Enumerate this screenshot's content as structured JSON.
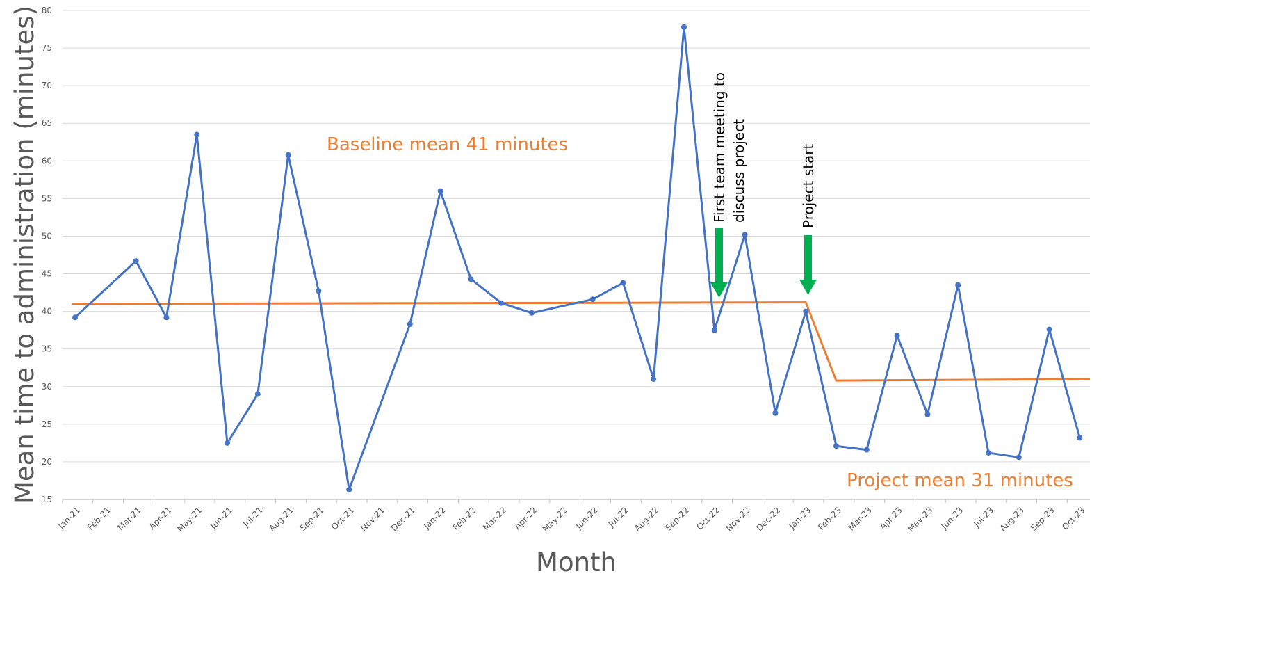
{
  "chart_data": {
    "type": "line",
    "title": "",
    "xlabel": "Month",
    "ylabel": "Mean time to administration (minutes)",
    "ylim": [
      15,
      80
    ],
    "y_ticks": [
      15,
      20,
      25,
      30,
      35,
      40,
      45,
      50,
      55,
      60,
      65,
      70,
      75,
      80
    ],
    "grid": true,
    "legend": "none",
    "categories": [
      "Jan-21",
      "Feb-21",
      "Mar-21",
      "Apr-21",
      "May-21",
      "Jun-21",
      "Jul-21",
      "Aug-21",
      "Sep-21",
      "Oct-21",
      "Nov-21",
      "Dec-21",
      "Jan-22",
      "Feb-22",
      "Mar-22",
      "Apr-22",
      "May-22",
      "Jun-22",
      "Jul-22",
      "Aug-22",
      "Sep-22",
      "Oct-22",
      "Nov-22",
      "Dec-22",
      "Jan-23",
      "Feb-23",
      "Mar-23",
      "Apr-23",
      "May-23",
      "Jun-23",
      "Jul-23",
      "Aug-23",
      "Sep-23",
      "Oct-23"
    ],
    "series": [
      {
        "color": "#4472C4",
        "points": [
          [
            "Jan-21",
            39.2
          ],
          [
            "Mar-21",
            46.7
          ],
          [
            "Apr-21",
            39.2
          ],
          [
            "May-21",
            63.5
          ],
          [
            "Jun-21",
            22.5
          ],
          [
            "Jul-21",
            29.0
          ],
          [
            "Aug-21",
            60.8
          ],
          [
            "Sep-21",
            42.7
          ],
          [
            "Oct-21",
            16.3
          ],
          [
            "Dec-21",
            38.3
          ],
          [
            "Jan-22",
            56.0
          ],
          [
            "Feb-22",
            44.3
          ],
          [
            "Mar-22",
            41.1
          ],
          [
            "Apr-22",
            39.8
          ],
          [
            "Jun-22",
            41.6
          ],
          [
            "Jul-22",
            43.8
          ],
          [
            "Aug-22",
            31.0
          ],
          [
            "Sep-22",
            77.8
          ],
          [
            "Oct-22",
            37.5
          ],
          [
            "Nov-22",
            50.2
          ],
          [
            "Dec-22",
            26.5
          ],
          [
            "Jan-23",
            40.0
          ],
          [
            "Feb-23",
            22.1
          ],
          [
            "Mar-23",
            21.6
          ],
          [
            "Apr-23",
            36.8
          ],
          [
            "May-23",
            26.3
          ],
          [
            "Jun-23",
            43.5
          ],
          [
            "Jul-23",
            21.2
          ],
          [
            "Aug-23",
            20.6
          ],
          [
            "Sep-23",
            37.6
          ],
          [
            "Oct-23",
            23.2
          ]
        ]
      },
      {
        "color": "#ED7D31",
        "points": [
          [
            "Jan-21",
            41.0
          ],
          [
            "Jan-23",
            41.2
          ],
          [
            "Feb-23",
            30.8
          ],
          [
            "Oct-23",
            31.0
          ]
        ]
      }
    ],
    "annotations": {
      "baseline_label": "Baseline mean 41 minutes",
      "project_mean_label": "Project mean 31 minutes",
      "first_meeting_line1": "First team meeting to",
      "first_meeting_line2": "discuss project",
      "project_start": "Project start"
    },
    "colors": {
      "data_line": "#4472C4",
      "mean_line": "#ED7D31",
      "arrow": "#00B050",
      "grid": "#D9D9D9",
      "axis": "#BFBFBF",
      "tick_text": "#595959"
    }
  }
}
